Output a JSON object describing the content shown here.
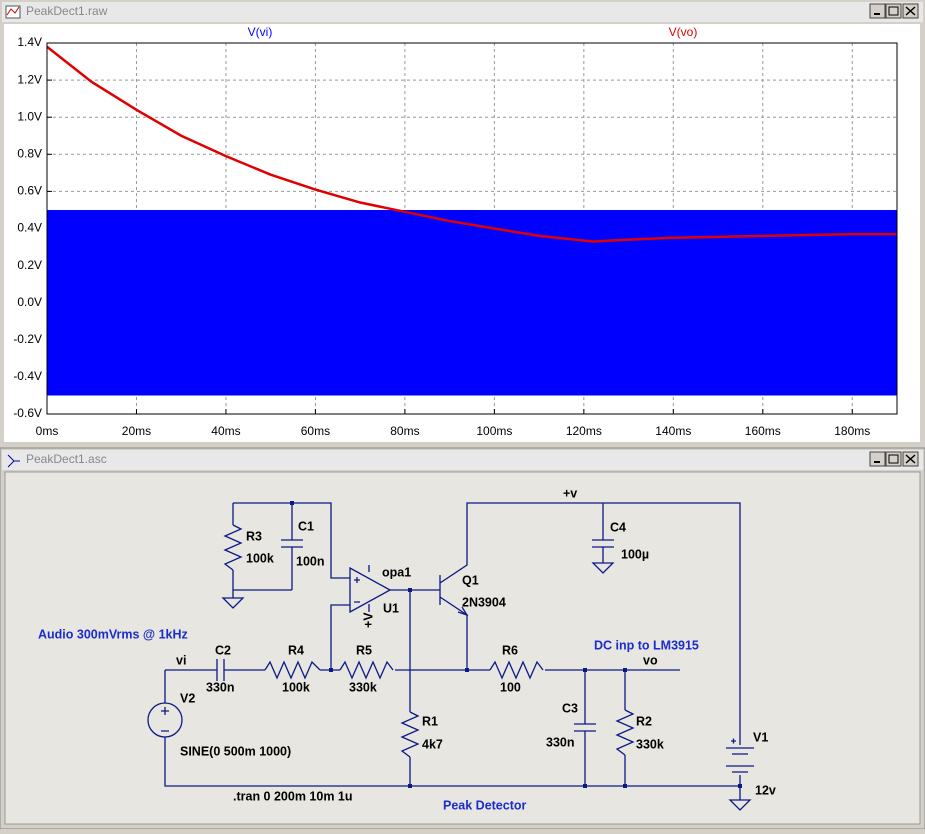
{
  "waveform_window": {
    "title": "PeakDect1.raw"
  },
  "chart_data": {
    "type": "line",
    "xlim": [
      0,
      190
    ],
    "ylim": [
      -0.6,
      1.4
    ],
    "xticks": [
      {
        "value": 0,
        "label": "0ms"
      },
      {
        "value": 20,
        "label": "20ms"
      },
      {
        "value": 40,
        "label": "40ms"
      },
      {
        "value": 60,
        "label": "60ms"
      },
      {
        "value": 80,
        "label": "80ms"
      },
      {
        "value": 100,
        "label": "100ms"
      },
      {
        "value": 120,
        "label": "120ms"
      },
      {
        "value": 140,
        "label": "140ms"
      },
      {
        "value": 160,
        "label": "160ms"
      },
      {
        "value": 180,
        "label": "180ms"
      }
    ],
    "yticks": [
      {
        "value": -0.6,
        "label": "-0.6V"
      },
      {
        "value": -0.4,
        "label": "-0.4V"
      },
      {
        "value": -0.2,
        "label": "-0.2V"
      },
      {
        "value": 0,
        "label": "0.0V"
      },
      {
        "value": 0.2,
        "label": "0.2V"
      },
      {
        "value": 0.4,
        "label": "0.4V"
      },
      {
        "value": 0.6,
        "label": "0.6V"
      },
      {
        "value": 0.8,
        "label": "0.8V"
      },
      {
        "value": 1.0,
        "label": "1.0V"
      },
      {
        "value": 1.2,
        "label": "1.2V"
      },
      {
        "value": 1.4,
        "label": "1.4V"
      }
    ],
    "grid": true,
    "series": [
      {
        "name": "V(vi)",
        "color": "#0000ff",
        "x": [
          0,
          190
        ],
        "upper": [
          0.5,
          0.5
        ],
        "lower": [
          -0.5,
          -0.5
        ]
      },
      {
        "name": "V(vo)",
        "color": "#e00000",
        "x": [
          0,
          10,
          20,
          30,
          40,
          50,
          60,
          70,
          80,
          90,
          100,
          110,
          122,
          130,
          140,
          150,
          160,
          170,
          180,
          190
        ],
        "values": [
          1.38,
          1.19,
          1.04,
          0.9,
          0.79,
          0.69,
          0.61,
          0.54,
          0.49,
          0.44,
          0.4,
          0.36,
          0.33,
          0.34,
          0.35,
          0.355,
          0.36,
          0.365,
          0.37,
          0.37
        ]
      }
    ]
  },
  "schematic_window": {
    "title": "PeakDect1.asc",
    "labels": [
      "R3",
      "100k",
      "C1",
      "100n",
      "opa1",
      "U1",
      "+V",
      "Q1",
      "2N3904",
      "+v",
      "C4",
      "100µ",
      "Audio 300mVrms @ 1kHz",
      "vi",
      "C2",
      "330n",
      "R4",
      "100k",
      "R5",
      "330k",
      "R6",
      "100",
      "DC inp to LM3915",
      "vo",
      "V2",
      "R1",
      "4k7",
      "C3",
      "330n",
      "R2",
      "330k",
      "V1",
      "SINE(0 500m 1000)",
      ".tran 0 200m 10m 1u",
      "Peak Detector",
      "12v"
    ]
  }
}
